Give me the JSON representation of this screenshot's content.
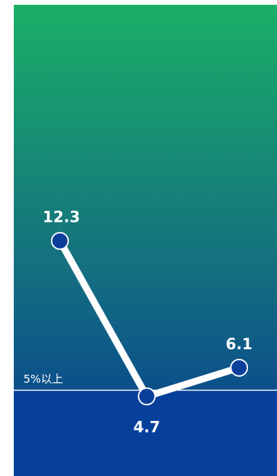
{
  "chart_data": {
    "type": "line",
    "series": [
      {
        "values": [
          12.3,
          4.7,
          6.1
        ]
      }
    ],
    "data_labels": [
      "12.3",
      "4.7",
      "6.1"
    ],
    "reference_line": {
      "value": 5,
      "label": "5%以上"
    },
    "ylim": [
      0,
      30
    ],
    "grid": false,
    "legend": "none",
    "colors": {
      "bg_top": "#1aaf67",
      "bg_mid": "#14707f",
      "bg_bottom": "#063a93",
      "below_band": "#06409a",
      "line": "#ffffff",
      "marker_fill": "#0b3f9c",
      "marker_stroke": "#ffffff"
    }
  }
}
